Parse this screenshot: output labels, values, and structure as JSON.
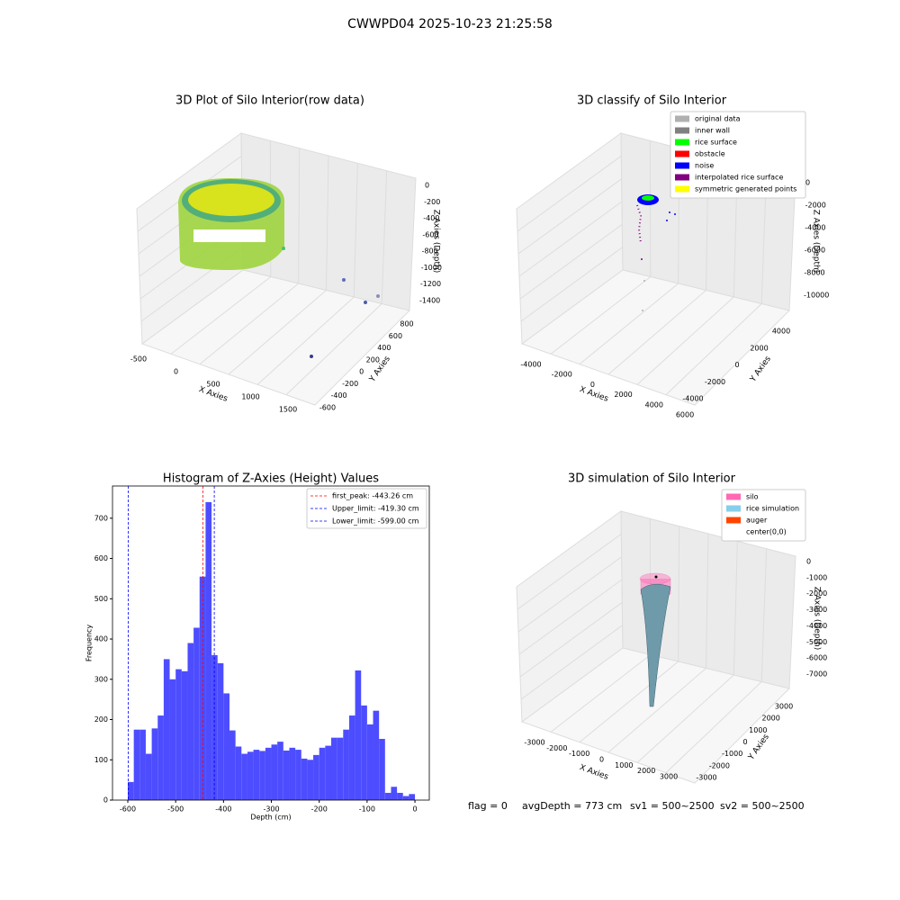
{
  "title": "CWWPD04 2025-10-23 21:25:58",
  "status": [
    "flag = 0",
    "avgDepth = 773 cm",
    "sv1 = 500~2500",
    "sv2 = 500~2500"
  ],
  "chart_data": [
    {
      "type": "scatter3d",
      "title": "3D Plot of Silo Interior(row data)",
      "xlabel": "X Axies",
      "ylabel": "Y Axies",
      "zlabel": "Z Axies (Depth)",
      "xticks": [
        -500,
        0,
        500,
        1000,
        1500
      ],
      "yticks": [
        -600,
        -400,
        -200,
        0,
        200,
        400,
        600,
        800
      ],
      "zticks": [
        0,
        -200,
        -400,
        -600,
        -800,
        -1000,
        -1200,
        -1400
      ]
    },
    {
      "type": "scatter3d",
      "title": "3D classify of Silo Interior",
      "xlabel": "X Axies",
      "ylabel": "Y Axies",
      "zlabel": "Z Axies (Depth)",
      "xticks": [
        -4000,
        -2000,
        0,
        2000,
        4000,
        6000
      ],
      "yticks": [
        -4000,
        -2000,
        0,
        2000,
        4000
      ],
      "zticks": [
        0,
        -2000,
        -4000,
        -6000,
        -8000,
        -10000
      ],
      "legend": [
        {
          "name": "original data",
          "color": "#b0b0b0"
        },
        {
          "name": "inner wall",
          "color": "#808080"
        },
        {
          "name": "rice surface",
          "color": "#00ff00"
        },
        {
          "name": "obstacle",
          "color": "#ff0000"
        },
        {
          "name": "noise",
          "color": "#0000ff"
        },
        {
          "name": "interpolated rice surface",
          "color": "#800080"
        },
        {
          "name": "symmetric generated points",
          "color": "#ffff00"
        }
      ]
    },
    {
      "type": "histogram",
      "title": "Histogram of Z-Axies (Height) Values",
      "xlabel": "Depth (cm)",
      "ylabel": "Frequency",
      "color": "#4d4dff",
      "bins": [
        -600,
        -587.5,
        -575,
        -562.5,
        -550,
        -537.5,
        -525,
        -512.5,
        -500,
        -487.5,
        -475,
        -462.5,
        -450,
        -437.5,
        -425,
        -412.5,
        -400,
        -387.5,
        -375,
        -362.5,
        -350,
        -337.5,
        -325,
        -312.5,
        -300,
        -287.5,
        -275,
        -262.5,
        -250,
        -237.5,
        -225,
        -212.5,
        -200,
        -187.5,
        -175,
        -162.5,
        -150,
        -137.5,
        -125,
        -112.5,
        -100,
        -87.5,
        -75,
        -62.5,
        -50,
        -37.5,
        -25,
        -12.5,
        0
      ],
      "values": [
        45,
        175,
        175,
        115,
        178,
        210,
        350,
        300,
        325,
        320,
        390,
        428,
        555,
        740,
        360,
        340,
        265,
        173,
        133,
        115,
        120,
        125,
        122,
        130,
        138,
        145,
        123,
        130,
        125,
        103,
        100,
        112,
        130,
        135,
        155,
        155,
        175,
        210,
        322,
        235,
        188,
        222,
        152,
        18,
        33,
        18,
        10,
        15
      ],
      "xlim": [
        -632,
        30
      ],
      "ylim": [
        0,
        780
      ],
      "xticks": [
        -600,
        -500,
        -400,
        -300,
        -200,
        -100,
        0
      ],
      "yticks": [
        0,
        100,
        200,
        300,
        400,
        500,
        600,
        700
      ],
      "vlines": [
        {
          "name": "first_peak: -443.26 cm",
          "value": -443.26,
          "color": "#ff0000"
        },
        {
          "name": "Upper_limit: -419.30 cm",
          "value": -419.3,
          "color": "#0000ff"
        },
        {
          "name": "Lower_limit: -599.00 cm",
          "value": -599.0,
          "color": "#0000ff"
        }
      ],
      "legend_position": "upper right"
    },
    {
      "type": "surface3d",
      "title": "3D simulation of Silo Interior",
      "xlabel": "X Axies",
      "ylabel": "Y Axies",
      "zlabel": "Z Axies (Depth)",
      "xticks": [
        -3000,
        -2000,
        -1000,
        0,
        1000,
        2000,
        3000
      ],
      "yticks": [
        -3000,
        -2000,
        -1000,
        0,
        1000,
        2000,
        3000
      ],
      "zticks": [
        0,
        -1000,
        -2000,
        -3000,
        -4000,
        -5000,
        -6000,
        -7000
      ],
      "legend": [
        {
          "name": "silo",
          "color": "#ff69b4"
        },
        {
          "name": "rice simulation",
          "color": "#87ceeb"
        },
        {
          "name": "auger",
          "color": "#ff4500"
        },
        {
          "name": "center(0,0)",
          "color": "#ffffff"
        }
      ]
    }
  ]
}
